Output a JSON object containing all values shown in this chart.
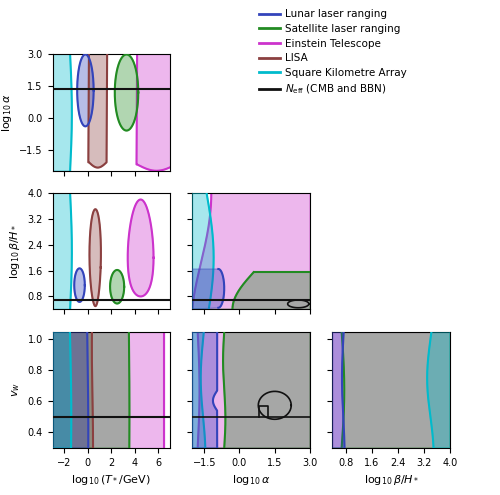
{
  "c_lunar": "#3344bb",
  "c_sat": "#228B22",
  "c_et": "#cc33cc",
  "c_lisa": "#8B4040",
  "c_ska": "#00bbcc",
  "c_neff": "#111111",
  "fa": 0.35,
  "lw": 1.5,
  "T_xlim": [
    -3,
    7
  ],
  "alpha_xlim": [
    -2,
    3
  ],
  "beta_xlim": [
    0.4,
    4.0
  ],
  "vw_xlim": [
    -3,
    7
  ],
  "alpha_ylim": [
    -2.5,
    3.0
  ],
  "beta_ylim": [
    0.4,
    4.0
  ],
  "vw_ylim": [
    0.3,
    1.05
  ],
  "T_xticks": [
    -2,
    0,
    2,
    4,
    6
  ],
  "alpha_xticks": [
    -1.5,
    0.0,
    1.5,
    3.0
  ],
  "beta_xticks": [
    0.8,
    1.6,
    2.4,
    3.2,
    4.0
  ],
  "alpha_yticks": [
    -1.5,
    0.0,
    1.5,
    3.0
  ],
  "beta_yticks": [
    0.8,
    1.6,
    2.4,
    3.2,
    4.0
  ],
  "vw_yticks": [
    0.4,
    0.6,
    0.8,
    1.0
  ]
}
